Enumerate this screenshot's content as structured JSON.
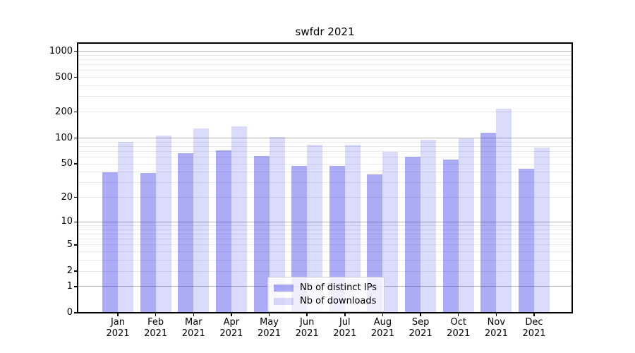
{
  "chart_data": {
    "type": "bar",
    "title": "swfdr 2021",
    "categories": [
      "Jan",
      "Feb",
      "Mar",
      "Apr",
      "May",
      "Jun",
      "Jul",
      "Aug",
      "Sep",
      "Oct",
      "Nov",
      "Dec"
    ],
    "year": "2021",
    "series": [
      {
        "name": "Nb of distinct IPs",
        "color": "#1919e6",
        "alpha": 0.36,
        "rendered_color": "#acacf6",
        "values": [
          40,
          39,
          67,
          72,
          62,
          47,
          47,
          38,
          61,
          56,
          116,
          44
        ]
      },
      {
        "name": "Nb of downloads",
        "color": "#1919e6",
        "alpha": 0.155,
        "rendered_color": "#dbdbfb",
        "values": [
          90,
          107,
          129,
          136,
          102,
          83,
          83,
          69,
          95,
          99,
          219,
          78
        ]
      }
    ],
    "yscale": "log1p",
    "ylim": [
      0,
      1240
    ],
    "ytick_values": [
      1000,
      500,
      200,
      100,
      50,
      20,
      10,
      5,
      2,
      1,
      0
    ],
    "major_grid_values": [
      1,
      10,
      100,
      1000
    ],
    "minor_grid_values": [
      2,
      3,
      4,
      5,
      6,
      7,
      8,
      9,
      20,
      30,
      40,
      50,
      60,
      70,
      80,
      90,
      200,
      300,
      400,
      500,
      600,
      700,
      800,
      900
    ],
    "grid": true,
    "legend_position": "lower center",
    "xlabel": "",
    "ylabel": ""
  },
  "styles": {
    "grid_major_color": "#b0b0b0",
    "grid_minor_color": "#e9e9e9",
    "spine_color": "#000000",
    "text_color": "#000000",
    "legend_border_color": "#cccccc",
    "background_color": "#ffffff"
  }
}
